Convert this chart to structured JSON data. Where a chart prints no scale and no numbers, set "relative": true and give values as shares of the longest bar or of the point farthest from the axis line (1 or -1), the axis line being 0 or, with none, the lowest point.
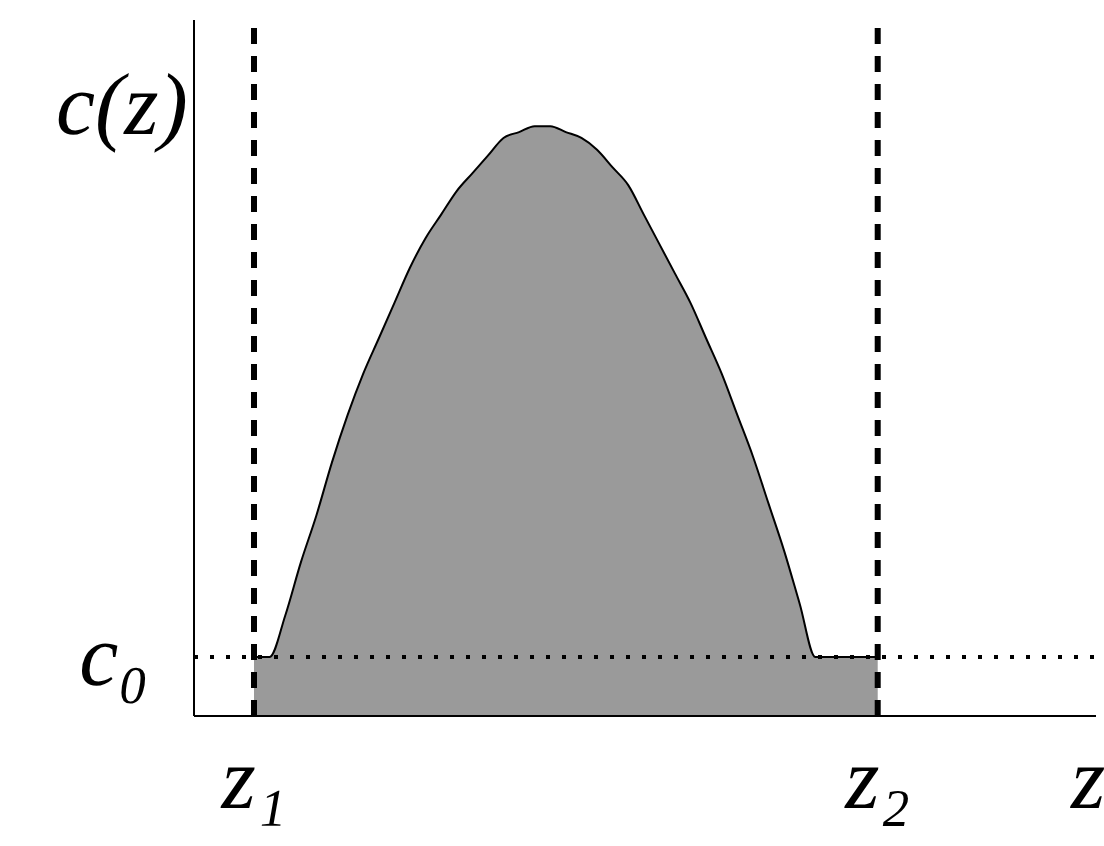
{
  "chart_data": {
    "type": "area",
    "relative": true,
    "xlabel": "z",
    "ylabel": "c(z)",
    "categories": [
      "z₁",
      null,
      null,
      null,
      null,
      null,
      null,
      null,
      null,
      null,
      null,
      null,
      null,
      null,
      null,
      null,
      null,
      null,
      null,
      null,
      null,
      null,
      null,
      null,
      null,
      null,
      null,
      null,
      null,
      null,
      null,
      null,
      null,
      null,
      null,
      null,
      null,
      null,
      null,
      null,
      "z₂",
      null,
      null,
      null,
      null,
      null,
      null,
      null,
      null,
      null,
      null,
      null,
      null,
      null,
      null
    ],
    "series": [
      {
        "color": "#9a9a9a",
        "values": [
          0.1,
          0.1,
          0.17,
          0.26,
          0.34,
          0.43,
          0.51,
          0.58,
          0.64,
          0.7,
          0.76,
          0.81,
          0.85,
          0.89,
          0.92,
          0.95,
          0.98,
          0.99,
          1.0,
          1.0,
          0.99,
          0.98,
          0.96,
          0.93,
          0.9,
          0.85,
          0.8,
          0.75,
          0.7,
          0.64,
          0.58,
          0.51,
          0.44,
          0.36,
          0.28,
          0.19,
          0.1,
          0.1,
          0.1,
          0.1,
          0.1,
          null,
          null,
          null,
          null,
          null,
          null,
          null,
          null,
          null,
          null,
          null,
          null,
          null,
          null
        ]
      }
    ],
    "ref_lines": [
      {
        "axis": "y",
        "value": 0.1,
        "label": "c₀",
        "line_style": "dotted"
      },
      {
        "axis": "x",
        "value": "z₁",
        "line_style": "dashed"
      },
      {
        "axis": "x",
        "value": "z₂",
        "line_style": "dashed"
      }
    ]
  }
}
